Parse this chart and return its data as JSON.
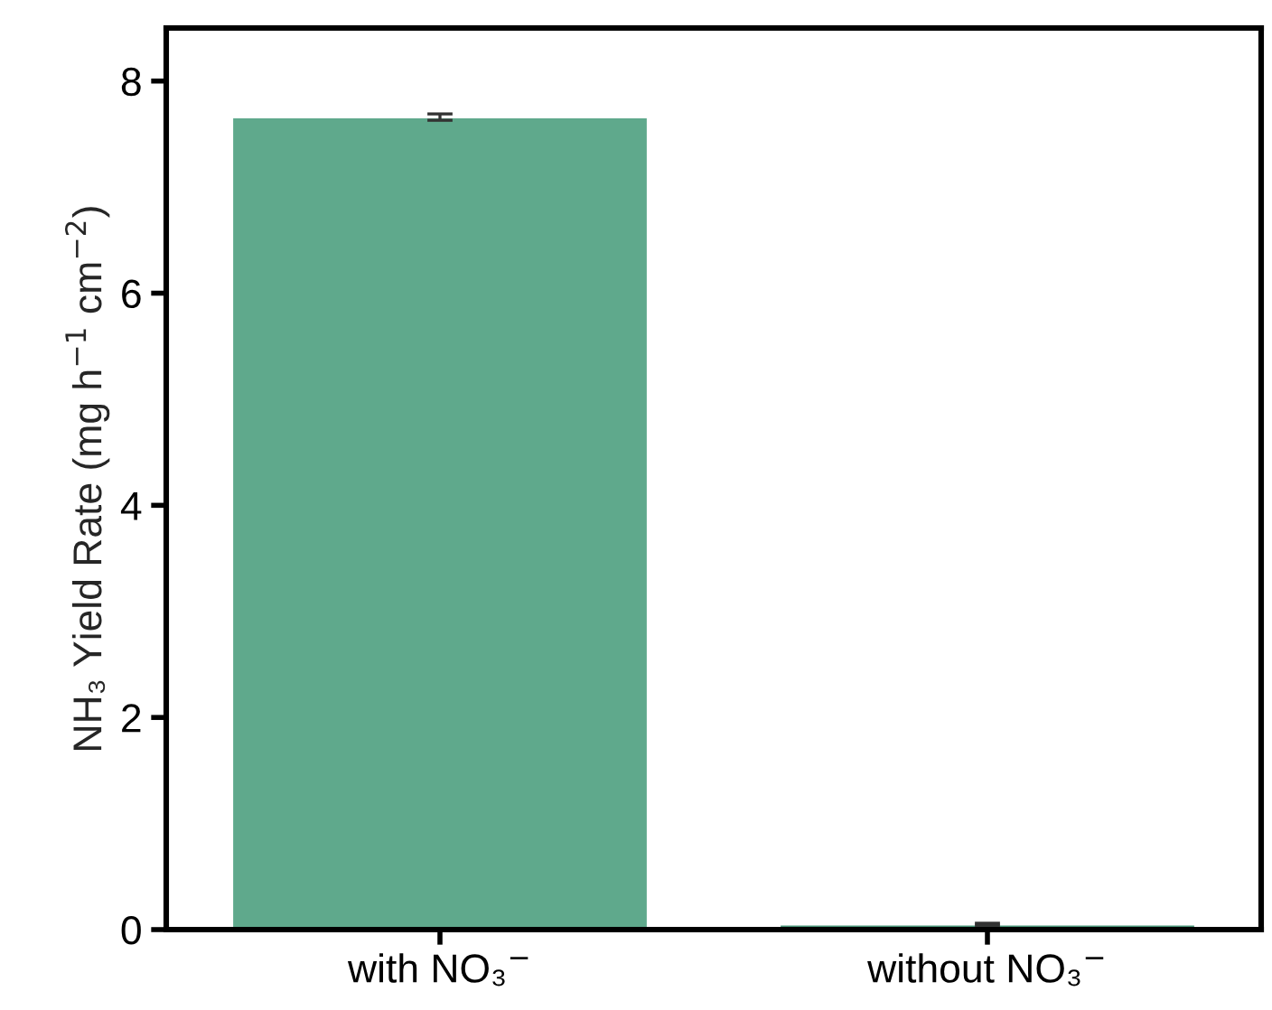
{
  "chart_data": {
    "type": "bar",
    "ylabel": "NH₃ Yield Rate (mg h$^{−1}$ cm$^{−2}$)",
    "categories": [
      "with NO₃$^{−}$",
      "without NO₃$^{−}$"
    ],
    "values": [
      7.66,
      0.05
    ],
    "errors": [
      0.03,
      0.01
    ],
    "colors": [
      "#5fa98c",
      "#4a9578"
    ],
    "ylim": [
      0,
      8.5
    ],
    "yticks": [
      0,
      2,
      4,
      6,
      8
    ],
    "grid": false
  }
}
